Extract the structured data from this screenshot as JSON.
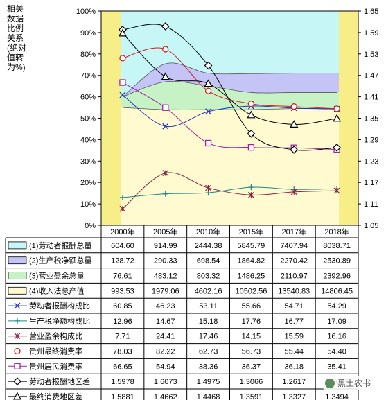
{
  "left_axis_title": [
    "相关",
    "数据",
    "比例",
    "关系",
    "(绝对",
    "值转",
    "为%)"
  ],
  "chart_data": {
    "type": "area",
    "categories": [
      "2000年",
      "2005年",
      "2010年",
      "2015年",
      "2017年",
      "2018年"
    ],
    "y_left": {
      "range": [
        0,
        100
      ],
      "ticks": [
        "0%",
        "10%",
        "20%",
        "30%",
        "40%",
        "50%",
        "60%",
        "70%",
        "80%",
        "90%",
        "100%"
      ]
    },
    "y_right": {
      "range": [
        1.05,
        1.65
      ],
      "ticks": [
        "1.05",
        "1.11",
        "1.17",
        "1.23",
        "1.29",
        "1.35",
        "1.41",
        "1.47",
        "1.53",
        "1.59",
        "1.65"
      ]
    },
    "stack_shares": {
      "s1_top": [
        60.85,
        72.0,
        71.5,
        71.0,
        71.0,
        71.0
      ],
      "s2_top": [
        60.0,
        75.4,
        71.0,
        70.8,
        71.0,
        71.0
      ],
      "s3_top": [
        60.0,
        67.0,
        65.0,
        62.0,
        62.0,
        62.0
      ],
      "s4_top": [
        55.0,
        54.0,
        54.0,
        54.0,
        54.5,
        54.5
      ]
    },
    "table_rows": [
      {
        "label": "(1)劳动者报酬总量",
        "values": [
          "604.60",
          "914.99",
          "2444.38",
          "5845.79",
          "7407.94",
          "8038.71"
        ],
        "legend": "swatch",
        "color": "#c6f6f6"
      },
      {
        "label": "(2)生产税净额总量",
        "values": [
          "128.72",
          "290.33",
          "698.54",
          "1864.82",
          "2270.42",
          "2530.89"
        ],
        "legend": "swatch",
        "color": "#c4c4f6"
      },
      {
        "label": "(3)营业盈余总量",
        "values": [
          "76.61",
          "483.12",
          "803.32",
          "1486.25",
          "2110.97",
          "2392.96"
        ],
        "legend": "swatch",
        "color": "#c6f2c6"
      },
      {
        "label": "(4)收入法总产值",
        "values": [
          "993.53",
          "1979.06",
          "4602.16",
          "10502.56",
          "13540.83",
          "14806.45"
        ],
        "legend": "swatch",
        "color": "#fffacf"
      },
      {
        "label": "劳动者报酬构成比",
        "values": [
          "60.85",
          "46.23",
          "53.11",
          "55.66",
          "54.71",
          "54.29"
        ],
        "legend": "line",
        "marker": "x",
        "color": "#2030c0"
      },
      {
        "label": "生产税净额构成比",
        "values": [
          "12.96",
          "14.67",
          "15.18",
          "17.76",
          "16.77",
          "17.09"
        ],
        "legend": "line",
        "marker": "plus",
        "color": "#1a8a8a"
      },
      {
        "label": "营业盈余构成比",
        "values": [
          "7.71",
          "24.41",
          "17.46",
          "14.15",
          "15.59",
          "16.16"
        ],
        "legend": "line",
        "marker": "star",
        "color": "#8a2040"
      },
      {
        "label": "贵州最终消费率",
        "values": [
          "78.03",
          "82.22",
          "62.73",
          "56.73",
          "55.44",
          "54.40"
        ],
        "legend": "line",
        "marker": "circle",
        "color": "#d02020"
      },
      {
        "label": "贵州居民消费率",
        "values": [
          "66.65",
          "54.94",
          "38.36",
          "36.37",
          "36.18",
          "35.41"
        ],
        "legend": "line",
        "marker": "square",
        "color": "#a020a0"
      },
      {
        "label": "劳动者报酬地区差",
        "values": [
          "1.5978",
          "1.6073",
          "1.4975",
          "1.3066",
          "1.2617",
          "1.2677"
        ],
        "legend": "line",
        "marker": "diamond",
        "color": "#000000"
      },
      {
        "label": "最终消费地区差",
        "values": [
          "1.5881",
          "1.4662",
          "1.4468",
          "1.3591",
          "1.3327",
          "1.3494"
        ],
        "legend": "line",
        "marker": "triangle",
        "color": "#000000"
      }
    ]
  },
  "watermark": "黑土农书",
  "colors": {
    "side_band": "#f8ee88",
    "grid": "#000000"
  }
}
